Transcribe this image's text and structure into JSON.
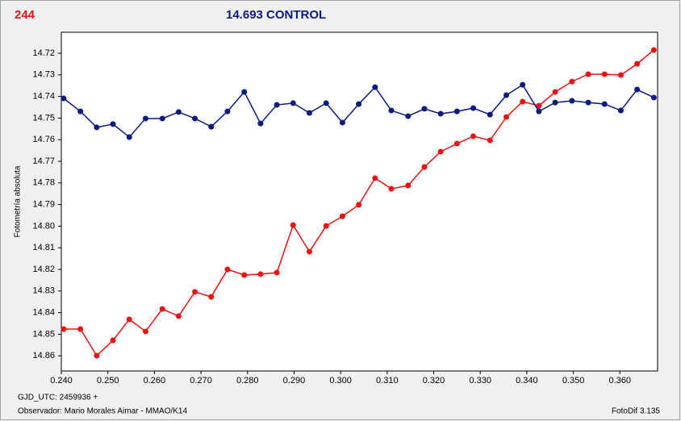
{
  "chart_data": {
    "type": "line",
    "header_left": "244",
    "title": "14.693 CONTROL",
    "ylabel": "Fotometría absoluta",
    "footer_lines": [
      "GJD_UTC: 2459936 +",
      "Observador: Mario Morales Aimar - MMAO/K14"
    ],
    "footer_right": "FotoDif 3.135",
    "x": [
      0.2405,
      0.2441,
      0.2476,
      0.2511,
      0.2546,
      0.2581,
      0.2617,
      0.2652,
      0.2687,
      0.2722,
      0.2757,
      0.2793,
      0.2828,
      0.2863,
      0.2898,
      0.2933,
      0.2969,
      0.3004,
      0.3039,
      0.3074,
      0.3109,
      0.3145,
      0.318,
      0.3215,
      0.325,
      0.3285,
      0.3321,
      0.3356,
      0.3391,
      0.3426,
      0.3461,
      0.3497,
      0.3532,
      0.3567,
      0.3602,
      0.3637,
      0.3673
    ],
    "series": [
      {
        "name": "244",
        "color": "#ee1111",
        "values": [
          14.8476,
          14.8476,
          14.8599,
          14.8528,
          14.8431,
          14.8487,
          14.8383,
          14.8416,
          14.8304,
          14.8327,
          14.82,
          14.8226,
          14.8222,
          14.8215,
          14.7995,
          14.8118,
          14.7999,
          14.7954,
          14.7901,
          14.7778,
          14.7827,
          14.7812,
          14.7726,
          14.7655,
          14.7618,
          14.7584,
          14.7603,
          14.7495,
          14.7424,
          14.7443,
          14.7379,
          14.7331,
          14.7297,
          14.7297,
          14.7301,
          14.7249,
          14.7185
        ]
      },
      {
        "name": "14.693 CONTROL",
        "color": "#0a1a80",
        "values": [
          14.7409,
          14.7469,
          14.7543,
          14.7528,
          14.7588,
          14.7502,
          14.7502,
          14.7472,
          14.7502,
          14.754,
          14.7469,
          14.7379,
          14.7525,
          14.7439,
          14.7431,
          14.7476,
          14.7431,
          14.7521,
          14.7435,
          14.7357,
          14.7465,
          14.7491,
          14.7457,
          14.748,
          14.7469,
          14.7454,
          14.7484,
          14.7394,
          14.7346,
          14.7469,
          14.7428,
          14.742,
          14.7428,
          14.7435,
          14.7465,
          14.7368,
          14.7405
        ]
      }
    ],
    "xlim": [
      0.24,
      0.3681
    ],
    "ylim": [
      14.867,
      14.7103
    ],
    "xticks": [
      {
        "value": 0.24,
        "label": "0.240"
      },
      {
        "value": 0.25,
        "label": "0.250"
      },
      {
        "value": 0.26,
        "label": "0.260"
      },
      {
        "value": 0.27,
        "label": "0.270"
      },
      {
        "value": 0.28,
        "label": "0.280"
      },
      {
        "value": 0.29,
        "label": "0.290"
      },
      {
        "value": 0.3,
        "label": "0.300"
      },
      {
        "value": 0.31,
        "label": "0.310"
      },
      {
        "value": 0.32,
        "label": "0.320"
      },
      {
        "value": 0.33,
        "label": "0.330"
      },
      {
        "value": 0.34,
        "label": "0.340"
      },
      {
        "value": 0.35,
        "label": "0.350"
      },
      {
        "value": 0.36,
        "label": "0.360"
      }
    ],
    "yticks": [
      14.72,
      14.73,
      14.74,
      14.75,
      14.76,
      14.77,
      14.78,
      14.79,
      {
        "value": 14.8,
        "label": "14.80"
      },
      14.81,
      14.82,
      14.83,
      14.84,
      14.85,
      14.86
    ]
  }
}
